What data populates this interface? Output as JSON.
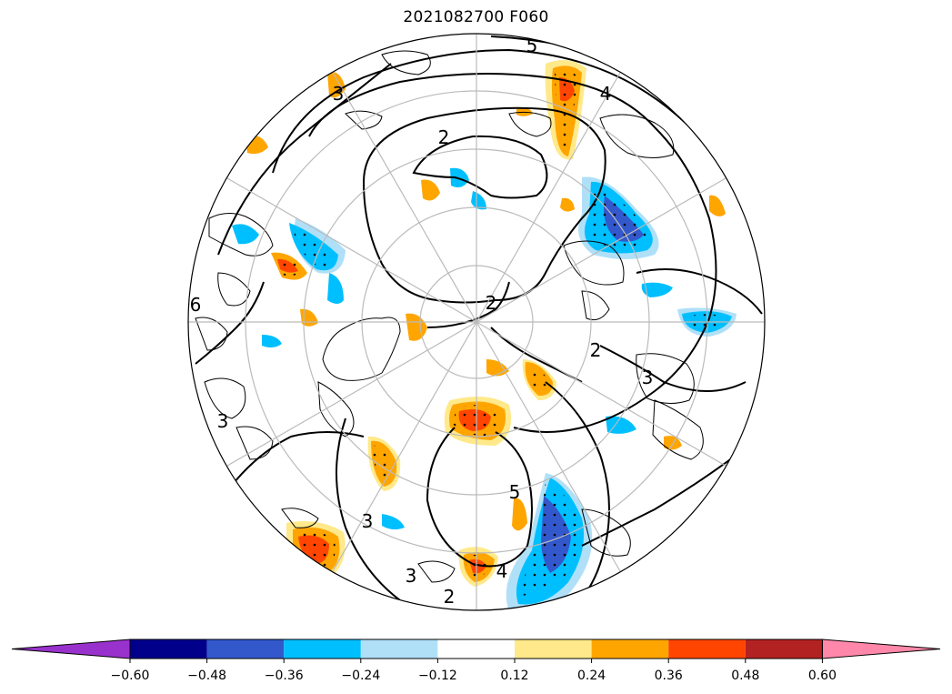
{
  "title": "2021082700 F060",
  "colorbar": {
    "extend_low_color": "#9932cc",
    "extend_high_color": "#ff88aa",
    "bins": [
      {
        "from": -0.6,
        "to": -0.48,
        "color": "#00008b"
      },
      {
        "from": -0.48,
        "to": -0.36,
        "color": "#3358cc"
      },
      {
        "from": -0.36,
        "to": -0.24,
        "color": "#00bfff"
      },
      {
        "from": -0.24,
        "to": -0.12,
        "color": "#b0e0f8"
      },
      {
        "from": -0.12,
        "to": 0.12,
        "color": "#ffffff"
      },
      {
        "from": 0.12,
        "to": 0.24,
        "color": "#ffe98a"
      },
      {
        "from": 0.24,
        "to": 0.36,
        "color": "#ffa500"
      },
      {
        "from": 0.36,
        "to": 0.48,
        "color": "#ff4500"
      },
      {
        "from": 0.48,
        "to": 0.6,
        "color": "#b22222"
      }
    ],
    "tick_labels": [
      "−0.60",
      "−0.48",
      "−0.36",
      "−0.24",
      "−0.12",
      "0.12",
      "0.24",
      "0.36",
      "0.48",
      "0.60"
    ]
  },
  "map": {
    "projection": "north-polar-stereographic",
    "contour_labels": [
      "2",
      "2",
      "2",
      "2",
      "3",
      "3",
      "3",
      "3",
      "3",
      "4",
      "4",
      "5",
      "5",
      "6"
    ],
    "gridline_color": "#bbbbbb",
    "stipple_color": "#000000"
  }
}
